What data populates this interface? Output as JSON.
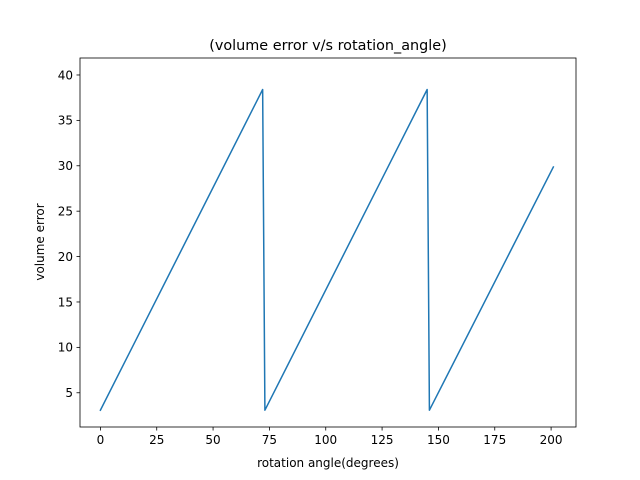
{
  "chart_data": {
    "type": "line",
    "title": "(volume error v/s rotation_angle)",
    "xlabel": "rotation angle(degrees)",
    "ylabel": "volume error",
    "xlim": [
      -9.05,
      211.05
    ],
    "ylim": [
      1.23,
      41.87
    ],
    "xticks": [
      0,
      25,
      50,
      75,
      100,
      125,
      150,
      175,
      200
    ],
    "yticks": [
      5,
      10,
      15,
      20,
      25,
      30,
      35,
      40
    ],
    "grid": false,
    "series": [
      {
        "color": "#1f77b4",
        "x": [
          0,
          72,
          73,
          145,
          146,
          201
        ],
        "y": [
          3.08,
          38.4,
          3.08,
          38.4,
          3.08,
          29.87
        ]
      }
    ]
  }
}
